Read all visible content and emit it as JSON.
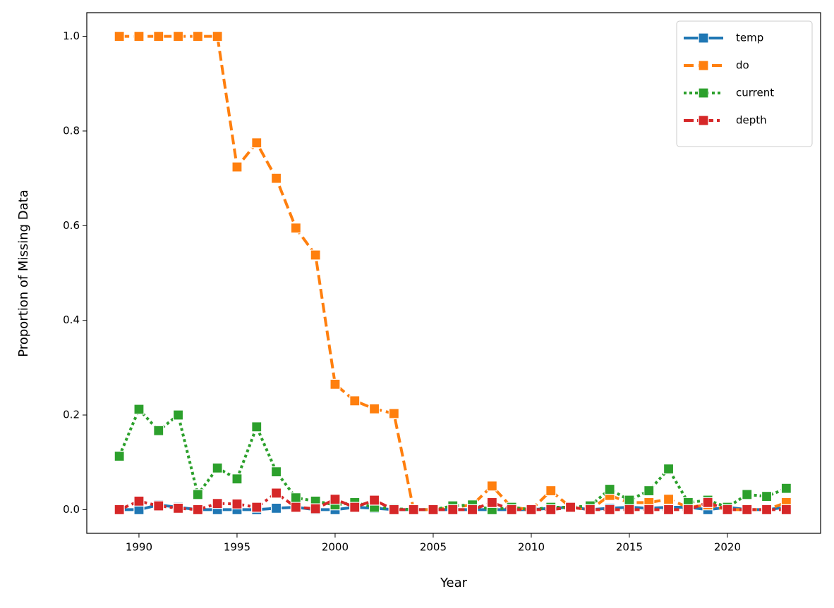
{
  "chart_data": {
    "type": "line",
    "x_label": "Year",
    "y_label": "Proportion of Missing Data",
    "x": [
      1989,
      1990,
      1991,
      1992,
      1993,
      1994,
      1995,
      1996,
      1997,
      1998,
      1999,
      2000,
      2001,
      2002,
      2003,
      2004,
      2005,
      2006,
      2007,
      2008,
      2009,
      2010,
      2011,
      2012,
      2013,
      2014,
      2015,
      2016,
      2017,
      2018,
      2019,
      2020,
      2021,
      2022,
      2023
    ],
    "series": [
      {
        "name": "temp",
        "color": "#1f77b4",
        "dash": "solid",
        "values": [
          0,
          0,
          0.01,
          0.005,
          0,
          0,
          0,
          0,
          0.003,
          0.005,
          0,
          0,
          0.005,
          0.003,
          0,
          0,
          0,
          0,
          0,
          0,
          0,
          0,
          0.003,
          0.005,
          0,
          0.003,
          0.005,
          0.003,
          0.005,
          0.005,
          0,
          0.005,
          0,
          0,
          0.005
        ]
      },
      {
        "name": "do",
        "color": "#ff7f0e",
        "dash": "dashed",
        "values": [
          1,
          1,
          1,
          1,
          1,
          1,
          0.724,
          0.775,
          0.7,
          0.595,
          0.538,
          0.265,
          0.23,
          0.213,
          0.203,
          0,
          0,
          0.005,
          0.01,
          0.05,
          0.005,
          0,
          0.04,
          0.005,
          0,
          0.03,
          0.015,
          0.015,
          0.022,
          0.005,
          0.01,
          0,
          0,
          0,
          0.015
        ]
      },
      {
        "name": "current",
        "color": "#2ca02c",
        "dash": "dotted",
        "values": [
          0.113,
          0.212,
          0.167,
          0.2,
          0.032,
          0.088,
          0.065,
          0.175,
          0.08,
          0.025,
          0.018,
          0.01,
          0.015,
          0.005,
          0.002,
          0,
          0,
          0.008,
          0.01,
          0,
          0.005,
          0,
          0.005,
          0.005,
          0.008,
          0.043,
          0.02,
          0.04,
          0.086,
          0.015,
          0.02,
          0.005,
          0.032,
          0.028,
          0.045
        ]
      },
      {
        "name": "depth",
        "color": "#d62728",
        "dash": "dashdot",
        "values": [
          0,
          0.018,
          0.008,
          0.003,
          0,
          0.013,
          0.012,
          0.005,
          0.035,
          0.005,
          0.002,
          0.022,
          0.005,
          0.02,
          0,
          0,
          0,
          0,
          0,
          0.015,
          0,
          0,
          0,
          0.005,
          0,
          0,
          0,
          0,
          0,
          0,
          0.015,
          0,
          0,
          0,
          0
        ]
      }
    ],
    "xlim": [
      1987.34,
      2024.75
    ],
    "xticks": [
      1990,
      1995,
      2000,
      2005,
      2010,
      2015,
      2020
    ],
    "ylim": [
      -0.05,
      1.05
    ],
    "yticks": [
      {
        "value": 0,
        "label": "0.0"
      },
      0.2,
      0.4,
      0.6,
      0.8,
      {
        "value": 1,
        "label": "1.0"
      }
    ],
    "legend": "upper right",
    "marker": "square",
    "grid": false
  }
}
